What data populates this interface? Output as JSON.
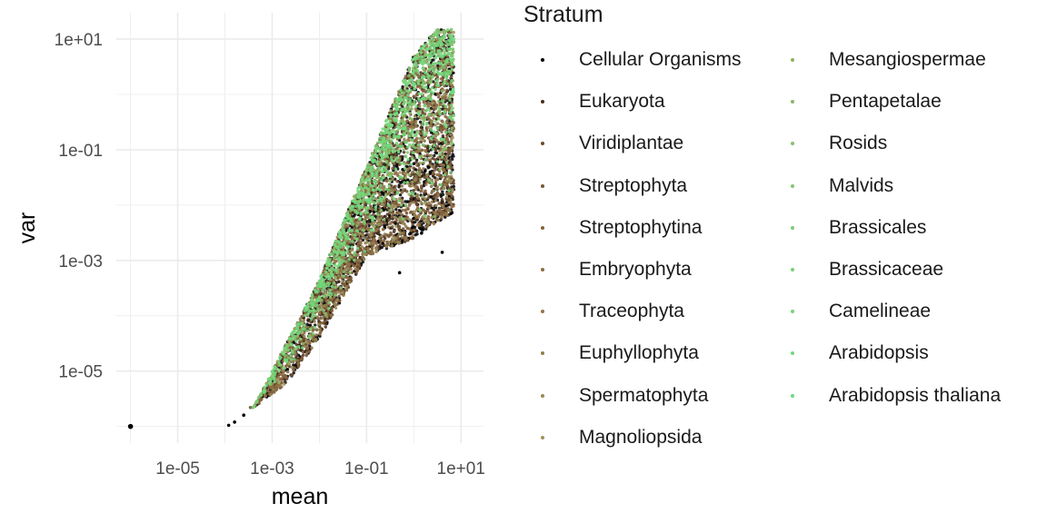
{
  "chart_data": {
    "type": "scatter",
    "xlabel": "mean",
    "ylabel": "var",
    "x_scale": "log10",
    "y_scale": "log10",
    "xlim": [
      5e-07,
      30
    ],
    "ylim": [
      5e-07,
      30
    ],
    "x_ticks": [
      "1e-05",
      "1e-03",
      "1e-01",
      "1e+01"
    ],
    "y_ticks": [
      "1e-05",
      "1e-03",
      "1e-01",
      "1e+01"
    ],
    "grid": true,
    "legend_position": "right",
    "legend": {
      "title": "Stratum",
      "items": [
        {
          "label": "Cellular Organisms",
          "color": "#000000"
        },
        {
          "label": "Eukaryota",
          "color": "#4a2f1c"
        },
        {
          "label": "Viridiplantae",
          "color": "#6b4a2c"
        },
        {
          "label": "Streptophyta",
          "color": "#7a5734"
        },
        {
          "label": "Streptophytina",
          "color": "#86623c"
        },
        {
          "label": "Embryophyta",
          "color": "#8f6b42"
        },
        {
          "label": "Traceophyta",
          "color": "#947446"
        },
        {
          "label": "Euphyllophyta",
          "color": "#8d7f4d"
        },
        {
          "label": "Spermatophyta",
          "color": "#938a56"
        },
        {
          "label": "Magnoliopsida",
          "color": "#9b935d"
        },
        {
          "label": "Mesangiospermae",
          "color": "#8fb05f"
        },
        {
          "label": "Pentapetalae",
          "color": "#8bb865"
        },
        {
          "label": "Rosids",
          "color": "#86c06a"
        },
        {
          "label": "Malvids",
          "color": "#80c76e"
        },
        {
          "label": "Brassicales",
          "color": "#7bcd72"
        },
        {
          "label": "Brassicaceae",
          "color": "#78d175"
        },
        {
          "label": "Camelineae",
          "color": "#76d478"
        },
        {
          "label": "Arabidopsis",
          "color": "#73d77b"
        },
        {
          "label": "Arabidopsis thaliana",
          "color": "#70da7e"
        }
      ]
    },
    "cloud": {
      "isolated_points": [
        {
          "x": 1e-06,
          "y": 1e-06
        },
        {
          "x": 0.00012,
          "y": 1.05e-06
        },
        {
          "x": 0.00016,
          "y": 1.2e-06
        },
        {
          "x": 0.00025,
          "y": 1.6e-06
        },
        {
          "x": 0.5,
          "y": 0.0006
        },
        {
          "x": 4,
          "y": 0.0014
        }
      ],
      "upper_boundary": [
        [
          0.0004,
          2.2e-06
        ],
        [
          0.001,
          1e-05
        ],
        [
          0.01,
          0.00045
        ],
        [
          0.1,
          0.05
        ],
        [
          1,
          5
        ],
        [
          3,
          15
        ]
      ],
      "lower_boundary": [
        [
          0.0004,
          2.2e-06
        ],
        [
          0.002,
          6e-06
        ],
        [
          0.01,
          4e-05
        ],
        [
          0.1,
          0.0012
        ],
        [
          1,
          0.0025
        ],
        [
          8,
          0.008
        ]
      ],
      "right_edge_log10_x": 0.85,
      "approx_point_count": 6000,
      "marks_drawn_per_stratum": [
        1500,
        380,
        300,
        380,
        320,
        280,
        220,
        170,
        140,
        120,
        110,
        100,
        120,
        110,
        120,
        140,
        170,
        190,
        210
      ]
    }
  }
}
